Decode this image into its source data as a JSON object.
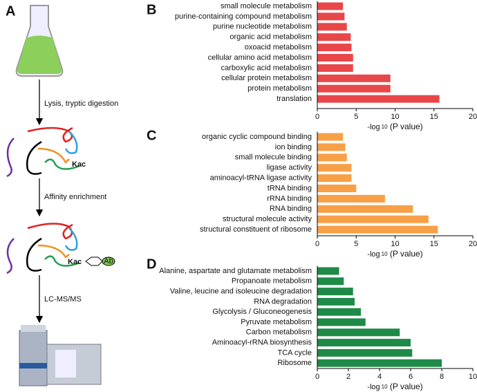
{
  "panel_labels": [
    "A",
    "B",
    "C",
    "D"
  ],
  "workflow": {
    "steps": [
      "Lysis, tryptic digestion",
      "Affinity enrichment",
      "LC-MS/MS"
    ],
    "modification": "Kac",
    "antibody": "Ab"
  },
  "chart_data": [
    {
      "type": "bar",
      "orientation": "horizontal",
      "color": "#e8474a",
      "categories": [
        "small molecule metabolism",
        "purine-containing compound metabolism",
        "purine nucleotide metabolism",
        "organic acid metabolism",
        "oxoacid metabolism",
        "cellular amino acid metabolism",
        "carboxylic acid metabolism",
        "cellular protein metabolism",
        "protein metabolism",
        "translation"
      ],
      "values": [
        3.3,
        3.5,
        3.8,
        4.3,
        4.4,
        4.6,
        4.6,
        9.4,
        9.4,
        15.7
      ],
      "xlim": [
        0,
        20
      ],
      "xticks": [
        0,
        5,
        10,
        15,
        20
      ],
      "xlabel": {
        "prefix": "-log",
        "sub": "10",
        "suffix": " (P value)"
      }
    },
    {
      "type": "bar",
      "orientation": "horizontal",
      "color": "#f7a047",
      "categories": [
        "organic cyclic compound binding",
        "ion binding",
        "small molecule binding",
        "ligase activity",
        "aminoacyl-tRNA ligase activity",
        "tRNA binding",
        "rRNA binding",
        "RNA binding",
        "structural molecule activity",
        "structural constituent of ribosome"
      ],
      "values": [
        3.3,
        3.6,
        3.8,
        4.4,
        4.4,
        5.0,
        8.7,
        12.3,
        14.3,
        15.5
      ],
      "xlim": [
        0,
        20
      ],
      "xticks": [
        0,
        5,
        10,
        15,
        20
      ],
      "xlabel": {
        "prefix": "-log",
        "sub": "10",
        "suffix": " (P value)"
      }
    },
    {
      "type": "bar",
      "orientation": "horizontal",
      "color": "#1e8a47",
      "categories": [
        "Alanine, aspartate and glutamate metabolism",
        "Propanoate metabolism",
        "Valine, leucine and isoleucine degradation",
        "RNA degradation",
        "Glycolysis / Gluconeogenesis",
        "Pyruvate metabolism",
        "Carbon metabolism",
        "Aminoacyl-rRNA biosynthesis",
        "TCA cycle",
        "Ribosome"
      ],
      "values": [
        1.4,
        1.7,
        2.3,
        2.4,
        2.8,
        3.1,
        5.3,
        6.0,
        6.1,
        8.0
      ],
      "xlim": [
        0,
        10
      ],
      "xticks": [
        0,
        2,
        4,
        6,
        8,
        10
      ],
      "xlabel": {
        "prefix": "-log",
        "sub": "10",
        "suffix": " (P value)"
      }
    }
  ]
}
